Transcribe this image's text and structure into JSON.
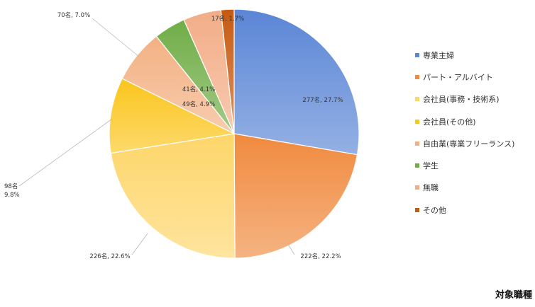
{
  "chart_data": {
    "type": "pie",
    "title": "対象職種",
    "unit": "名",
    "slices": [
      {
        "label": "専業主婦",
        "value": 277,
        "percent": "27.7%",
        "text": "277名, 27.7%",
        "color": "#5b86d6"
      },
      {
        "label": "パート・アルバイト",
        "value": 222,
        "percent": "22.2%",
        "text": "222名, 22.2%",
        "color": "#f08a3e"
      },
      {
        "label": "会社員(事務・技術系)",
        "value": 226,
        "percent": "22.6%",
        "text": "226名, 22.6%",
        "color": "#fdd66a"
      },
      {
        "label": "会社員(その他)",
        "value": 98,
        "percent": "9.8%",
        "text": "98名, 9.8%",
        "color": "#fbc51c"
      },
      {
        "label": "自由業(専業フリーランス)",
        "value": 70,
        "percent": "7.0%",
        "text": "70名, 7.0%",
        "color": "#f3b183"
      },
      {
        "label": "学生",
        "value": 41,
        "percent": "4.1%",
        "text": "41名, 4.1%",
        "color": "#70ad47"
      },
      {
        "label": "無職",
        "value": 49,
        "percent": "4.9%",
        "text": "49名, 4.9%",
        "color": "#f2ad87"
      },
      {
        "label": "その他",
        "value": 17,
        "percent": "1.7%",
        "text": "17名, 1.7%",
        "color": "#c55a11"
      }
    ],
    "legend_position": "right",
    "labels": [
      {
        "slice": 0,
        "text": "277名, 27.7%"
      },
      {
        "slice": 1,
        "text": "222名, 22.2%"
      },
      {
        "slice": 2,
        "text": "226名, 22.6%"
      },
      {
        "slice": 3,
        "lines": [
          "98名",
          "9.8%"
        ]
      },
      {
        "slice": 4,
        "text": "70名, 7.0%"
      },
      {
        "slice": 5,
        "text": "41名, 4.1%"
      },
      {
        "slice": 6,
        "text": "49名, 4.9%"
      },
      {
        "slice": 7,
        "text": "17名, 1.7%"
      }
    ]
  }
}
